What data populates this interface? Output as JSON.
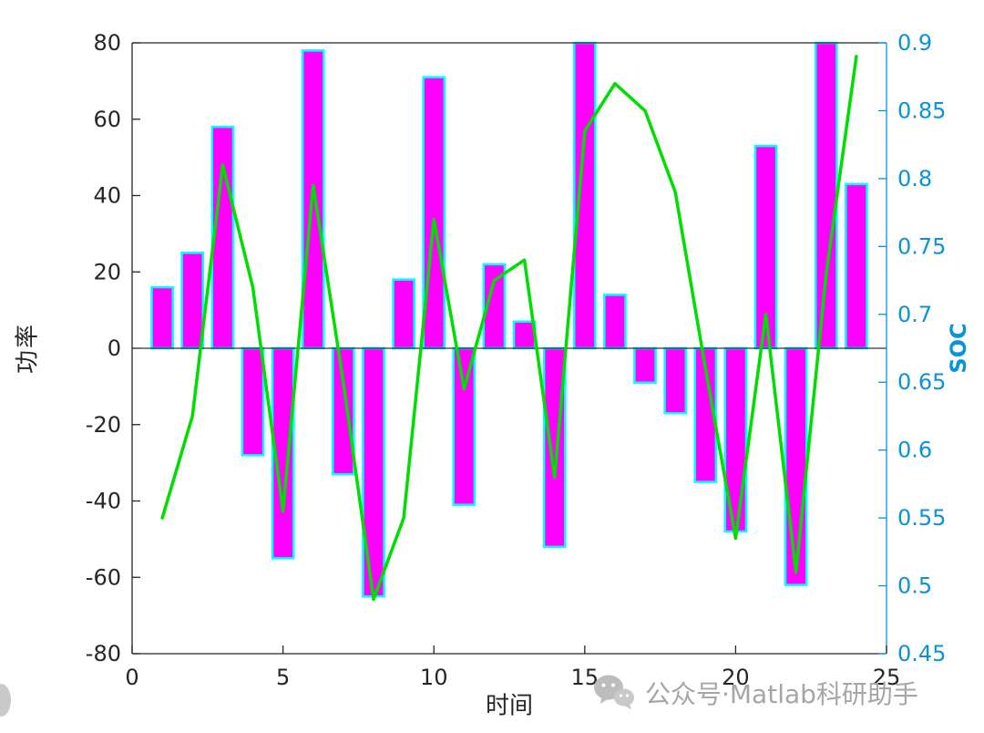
{
  "watermark": {
    "text": "公众号·Matlab科研助手"
  },
  "chart_data": {
    "type": "bar",
    "x": [
      1,
      2,
      3,
      4,
      5,
      6,
      7,
      8,
      9,
      10,
      11,
      12,
      13,
      14,
      15,
      16,
      17,
      18,
      19,
      20,
      21,
      22,
      23,
      24
    ],
    "series": [
      {
        "name": "功率",
        "type": "bar",
        "axis": "left",
        "values": [
          16,
          25,
          58,
          -28,
          -55,
          78,
          -33,
          -65,
          18,
          71,
          -41,
          22,
          7,
          -52,
          80,
          14,
          -9,
          -17,
          -35,
          -48,
          53,
          -62,
          80,
          43
        ]
      },
      {
        "name": "SOC",
        "type": "line",
        "axis": "right",
        "values": [
          0.55,
          0.625,
          0.81,
          0.72,
          0.555,
          0.795,
          0.65,
          0.49,
          0.55,
          0.77,
          0.645,
          0.725,
          0.74,
          0.58,
          0.835,
          0.87,
          0.85,
          0.79,
          0.66,
          0.535,
          0.7,
          0.51,
          0.73,
          0.89
        ]
      }
    ],
    "xlabel": "时间",
    "ylabel_left": "功率",
    "ylabel_right": "SOC",
    "xlim": [
      0,
      25
    ],
    "ylim_left": [
      -80,
      80
    ],
    "ylim_right": [
      0.45,
      0.9
    ],
    "xticks": [
      0,
      5,
      10,
      15,
      20,
      25
    ],
    "yticks_left": [
      -80,
      -60,
      -40,
      -20,
      0,
      20,
      40,
      60,
      80
    ],
    "yticks_right": [
      0.45,
      0.5,
      0.55,
      0.6,
      0.65,
      0.7,
      0.75,
      0.8,
      0.85,
      0.9
    ],
    "grid": false,
    "legend": null,
    "colors": {
      "bar_fill": "#FF00FF",
      "bar_edge": "#00FFFF",
      "line": "#00DD00",
      "right_axis": "#0B93D5",
      "axis": "#262626",
      "watermark": "#A6A6A6"
    }
  }
}
